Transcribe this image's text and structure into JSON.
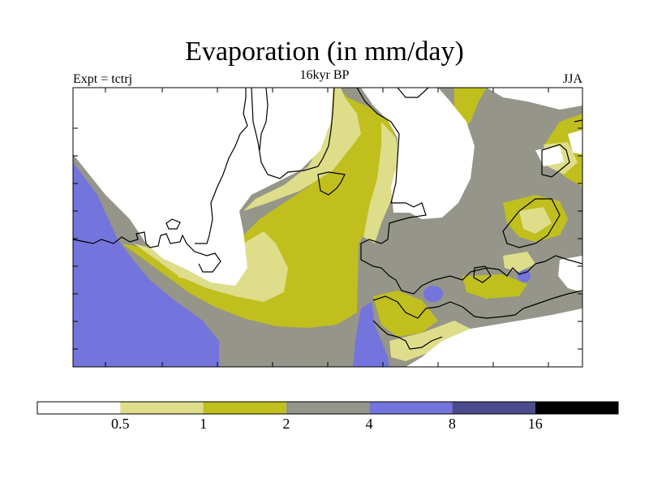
{
  "header": {
    "title": "Evaporation (in mm/day)",
    "experiment": "Expt = tctrj",
    "period": "16kyr BP",
    "season": "JJA"
  },
  "colorbar": {
    "bins": [
      {
        "color": "#ffffff"
      },
      {
        "color": "#dedd8a"
      },
      {
        "color": "#c0bf1e"
      },
      {
        "color": "#95958a"
      },
      {
        "color": "#7474dd"
      },
      {
        "color": "#4b4b8d"
      },
      {
        "color": "#000000"
      }
    ],
    "labels": [
      "0.5",
      "1",
      "2",
      "4",
      "8",
      "16"
    ]
  },
  "colors": {
    "ice_white": "#ffffff",
    "pale_yellow": "#dedd8a",
    "olive": "#c0bf1e",
    "gray": "#95958a",
    "blue": "#7474dd",
    "outline": "#000000"
  }
}
